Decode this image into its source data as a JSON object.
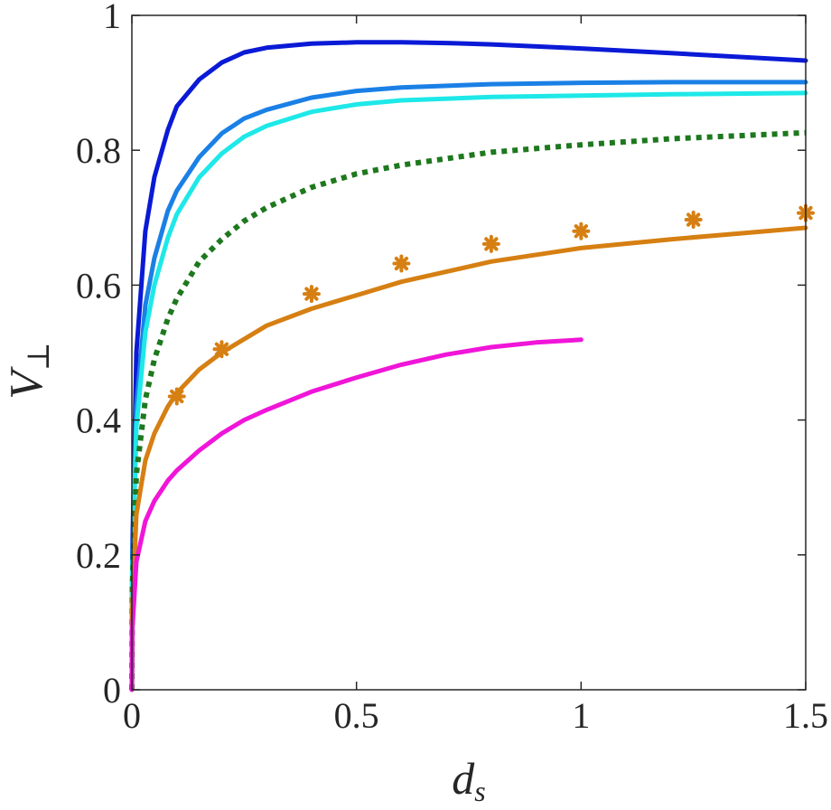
{
  "chart_data": {
    "type": "line",
    "title": "",
    "xlabel": {
      "base": "d",
      "sub": "s"
    },
    "ylabel": {
      "base": "V",
      "sub": "⊥"
    },
    "xlim": [
      0,
      1.5
    ],
    "ylim": [
      0,
      1
    ],
    "xticks": [
      0,
      0.5,
      1,
      1.5
    ],
    "xtick_labels": [
      "0",
      "0.5",
      "1",
      "1.5"
    ],
    "yticks": [
      0,
      0.2,
      0.4,
      0.6,
      0.8,
      1
    ],
    "ytick_labels": [
      "0",
      "0.2",
      "0.4",
      "0.6",
      "0.8",
      "1"
    ],
    "grid": false,
    "legend": "none",
    "series": [
      {
        "kind": "line",
        "style": "solid",
        "color": "#0a1ad6",
        "x": [
          0,
          0.001,
          0.01,
          0.03,
          0.05,
          0.08,
          0.1,
          0.15,
          0.2,
          0.25,
          0.3,
          0.4,
          0.5,
          0.6,
          0.7,
          0.8,
          1.0,
          1.2,
          1.5
        ],
        "y": [
          0,
          0.2,
          0.5,
          0.68,
          0.76,
          0.83,
          0.865,
          0.905,
          0.93,
          0.945,
          0.952,
          0.958,
          0.96,
          0.96,
          0.959,
          0.957,
          0.951,
          0.944,
          0.933
        ]
      },
      {
        "kind": "line",
        "style": "solid",
        "color": "#1a80e6",
        "x": [
          0,
          0.001,
          0.01,
          0.03,
          0.05,
          0.08,
          0.1,
          0.15,
          0.2,
          0.25,
          0.3,
          0.4,
          0.5,
          0.6,
          0.8,
          1.0,
          1.2,
          1.5
        ],
        "y": [
          0,
          0.18,
          0.42,
          0.57,
          0.64,
          0.71,
          0.74,
          0.79,
          0.825,
          0.847,
          0.86,
          0.878,
          0.888,
          0.893,
          0.898,
          0.9,
          0.901,
          0.901
        ]
      },
      {
        "kind": "line",
        "style": "solid",
        "color": "#1ee8e8",
        "x": [
          0,
          0.001,
          0.01,
          0.03,
          0.05,
          0.08,
          0.1,
          0.15,
          0.2,
          0.25,
          0.3,
          0.4,
          0.5,
          0.6,
          0.8,
          1.0,
          1.2,
          1.5
        ],
        "y": [
          0,
          0.17,
          0.39,
          0.53,
          0.6,
          0.67,
          0.705,
          0.76,
          0.795,
          0.82,
          0.836,
          0.857,
          0.868,
          0.874,
          0.879,
          0.881,
          0.883,
          0.885
        ]
      },
      {
        "kind": "line",
        "style": "dotted",
        "color": "#1e781e",
        "x": [
          0,
          0.001,
          0.01,
          0.03,
          0.05,
          0.08,
          0.1,
          0.15,
          0.2,
          0.25,
          0.3,
          0.4,
          0.5,
          0.6,
          0.8,
          1.0,
          1.2,
          1.5
        ],
        "y": [
          0,
          0.15,
          0.32,
          0.43,
          0.49,
          0.55,
          0.58,
          0.635,
          0.668,
          0.695,
          0.715,
          0.745,
          0.765,
          0.778,
          0.797,
          0.808,
          0.817,
          0.826
        ]
      },
      {
        "kind": "line",
        "style": "solid",
        "color": "#d67f12",
        "x": [
          0,
          0.001,
          0.01,
          0.03,
          0.05,
          0.08,
          0.1,
          0.15,
          0.2,
          0.3,
          0.4,
          0.5,
          0.6,
          0.8,
          1.0,
          1.2,
          1.5
        ],
        "y": [
          0,
          0.12,
          0.26,
          0.34,
          0.38,
          0.42,
          0.44,
          0.475,
          0.5,
          0.54,
          0.565,
          0.585,
          0.605,
          0.635,
          0.655,
          0.668,
          0.685
        ]
      },
      {
        "kind": "line",
        "style": "solid",
        "color": "#f015d8",
        "x": [
          0,
          0.001,
          0.01,
          0.03,
          0.05,
          0.08,
          0.1,
          0.15,
          0.2,
          0.25,
          0.3,
          0.4,
          0.5,
          0.6,
          0.7,
          0.8,
          0.9,
          1.0
        ],
        "y": [
          0,
          0.09,
          0.19,
          0.25,
          0.28,
          0.31,
          0.325,
          0.355,
          0.38,
          0.4,
          0.415,
          0.442,
          0.463,
          0.482,
          0.497,
          0.508,
          0.515,
          0.519
        ]
      },
      {
        "kind": "scatter",
        "marker": "asterisk",
        "color": "#d67f12",
        "x": [
          0.1,
          0.2,
          0.4,
          0.6,
          0.8,
          1.0,
          1.25,
          1.5
        ],
        "y": [
          0.435,
          0.505,
          0.587,
          0.632,
          0.661,
          0.68,
          0.697,
          0.707
        ]
      }
    ]
  }
}
